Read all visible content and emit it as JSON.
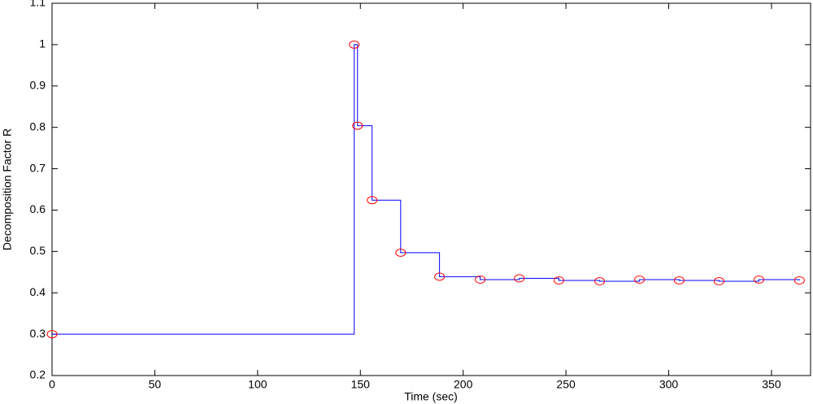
{
  "chart_data": {
    "type": "line",
    "drawstyle": "steps-post",
    "x_label": "Time (sec)",
    "y_label": "Decomposition Factor R",
    "x": [
      0,
      147,
      148.6,
      155.7,
      169.6,
      188.5,
      208.3,
      227.3,
      246.6,
      266.4,
      285.8,
      305.1,
      324.5,
      343.9,
      363.6
    ],
    "series": [
      {
        "values": [
          0.3,
          1.0,
          0.804,
          0.624,
          0.497,
          0.439,
          0.432,
          0.435,
          0.43,
          0.428,
          0.432,
          0.43,
          0.428,
          0.432,
          0.43
        ],
        "color": "#0000ff",
        "marker_color": "#ff0000"
      }
    ],
    "xlim": [
      0,
      369
    ],
    "ylim": [
      0.2,
      1.1
    ],
    "xticks": [
      0,
      50,
      100,
      150,
      200,
      250,
      300,
      350
    ],
    "yticks": [
      0.2,
      0.3,
      0.4,
      0.5,
      0.6,
      0.7,
      0.8,
      0.9,
      1,
      1.1
    ],
    "grid": false
  }
}
